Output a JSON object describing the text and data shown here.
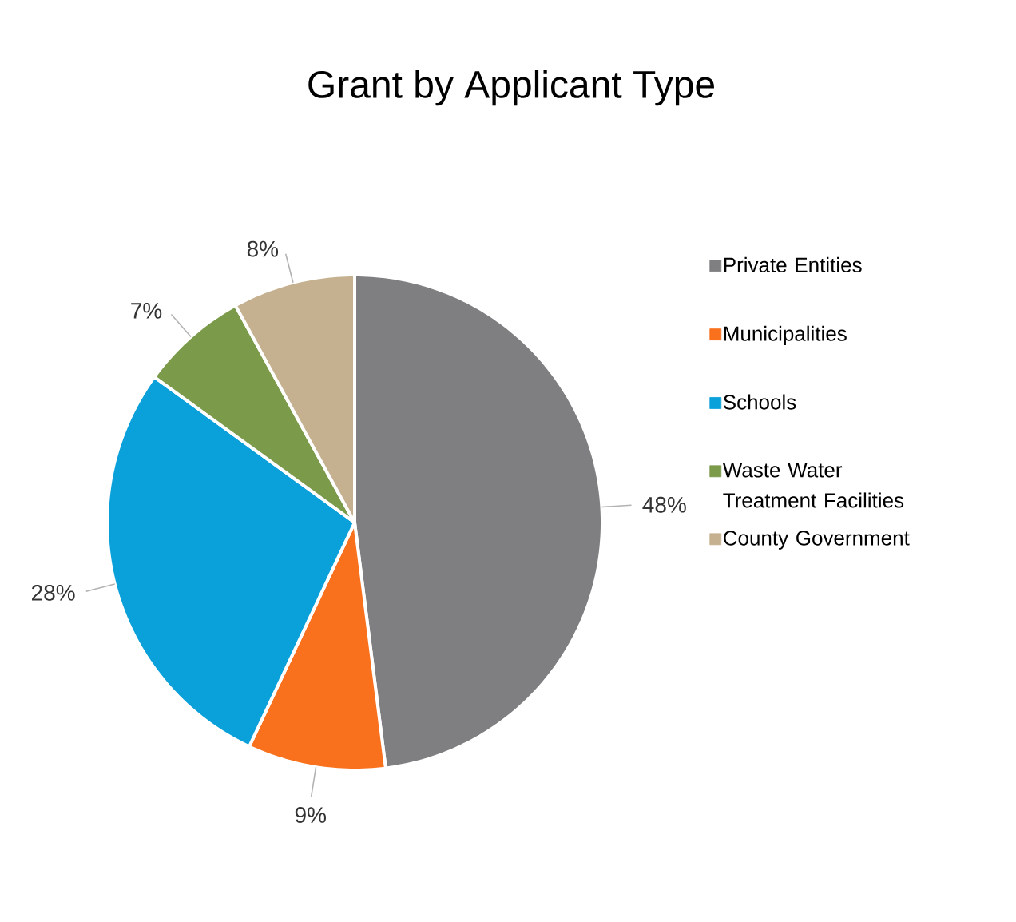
{
  "chart_data": {
    "type": "pie",
    "title": "Grant by Applicant Type",
    "categories": [
      "Private Entities",
      "Municipalities",
      "Schools",
      "Waste Water Treatment Facilities",
      "County Government"
    ],
    "values": [
      48,
      9,
      28,
      7,
      8
    ],
    "value_labels": [
      "48%",
      "9%",
      "28%",
      "7%",
      "8%"
    ],
    "colors": [
      "#7f7f82",
      "#f9701d",
      "#0aa0da",
      "#7b9a4a",
      "#c5b18f"
    ],
    "legend": "right"
  }
}
